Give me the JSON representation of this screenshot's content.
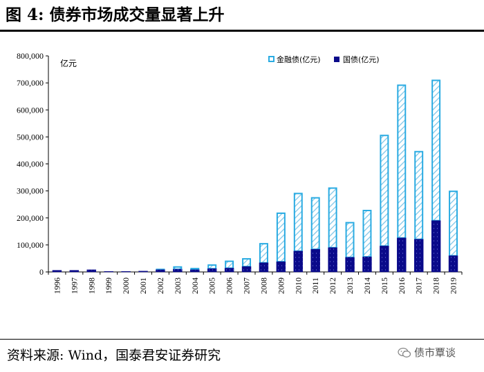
{
  "page": {
    "title": "图 4:  债券市场成交量显著上升",
    "source": "资料来源:  Wind，国泰君安证券研究",
    "watermark": "债市覃谈"
  },
  "colors": {
    "financial_bond": "#29ABE2",
    "treasury_bond": "#0A0A8A",
    "axis": "#000000"
  },
  "chart_data": {
    "type": "bar",
    "stacked": true,
    "title": "债券市场成交量显著上升",
    "ylabel": "亿元",
    "xlabel": "",
    "ylim": [
      0,
      800000
    ],
    "yticks": [
      0,
      100000,
      200000,
      300000,
      400000,
      500000,
      600000,
      700000,
      800000
    ],
    "ytick_labels": [
      "0",
      "100,000",
      "200,000",
      "300,000",
      "400,000",
      "500,000",
      "600,000",
      "700,000",
      "800,000"
    ],
    "grid": false,
    "legend_position": "top-right",
    "categories": [
      "1996",
      "1997",
      "1998",
      "1999",
      "2000",
      "2001",
      "2002",
      "2003",
      "2004",
      "2005",
      "2006",
      "2007",
      "2008",
      "2009",
      "2010",
      "2011",
      "2012",
      "2013",
      "2014",
      "2015",
      "2016",
      "2017",
      "2018",
      "2019"
    ],
    "series": [
      {
        "name": "国债(亿元)",
        "pattern": "dotted",
        "values": [
          6000,
          6000,
          8000,
          2000,
          2000,
          3000,
          8000,
          10000,
          8000,
          12000,
          14000,
          20000,
          34000,
          38000,
          77000,
          84000,
          90000,
          54000,
          56000,
          96000,
          126000,
          121000,
          190000,
          60000
        ]
      },
      {
        "name": "金融债(亿元)",
        "pattern": "hatched",
        "values": [
          0,
          0,
          0,
          2000,
          2000,
          2000,
          4000,
          11000,
          7000,
          16000,
          28000,
          31000,
          73000,
          182000,
          216000,
          193000,
          223000,
          131000,
          174000,
          412000,
          568000,
          327000,
          522000,
          241000
        ]
      }
    ]
  }
}
